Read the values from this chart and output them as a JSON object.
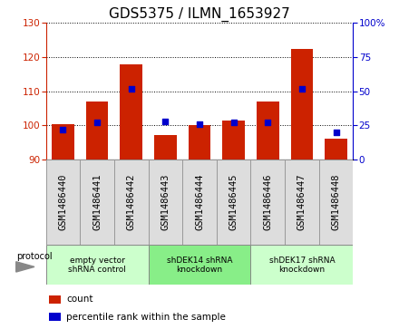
{
  "title": "GDS5375 / ILMN_1653927",
  "samples": [
    "GSM1486440",
    "GSM1486441",
    "GSM1486442",
    "GSM1486443",
    "GSM1486444",
    "GSM1486445",
    "GSM1486446",
    "GSM1486447",
    "GSM1486448"
  ],
  "counts": [
    100.3,
    107.0,
    118.0,
    97.3,
    100.2,
    101.3,
    107.0,
    122.5,
    96.2
  ],
  "percentiles": [
    22,
    27,
    52,
    28,
    26,
    27,
    27,
    52,
    20
  ],
  "ylim_left": [
    90,
    130
  ],
  "ylim_right": [
    0,
    100
  ],
  "yticks_left": [
    90,
    100,
    110,
    120,
    130
  ],
  "yticks_right": [
    0,
    25,
    50,
    75,
    100
  ],
  "bar_color": "#cc2200",
  "square_color": "#0000cc",
  "bar_bottom": 90,
  "groups": [
    {
      "label": "empty vector\nshRNA control",
      "start": 0,
      "end": 3,
      "color": "#ccffcc"
    },
    {
      "label": "shDEK14 shRNA\nknockdown",
      "start": 3,
      "end": 6,
      "color": "#88ee88"
    },
    {
      "label": "shDEK17 shRNA\nknockdown",
      "start": 6,
      "end": 9,
      "color": "#ccffcc"
    }
  ],
  "protocol_label": "protocol",
  "legend_count_label": "count",
  "legend_percentile_label": "percentile rank within the sample",
  "title_fontsize": 11,
  "tick_fontsize": 7.5,
  "bar_width": 0.65,
  "sample_box_color": "#dddddd",
  "right_ytick_labels": [
    "0",
    "25",
    "50",
    "75",
    "100%"
  ]
}
